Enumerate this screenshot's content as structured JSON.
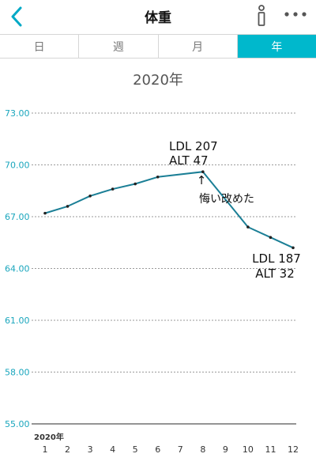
{
  "header": {
    "title": "体重",
    "back_icon": "chevron-left-icon",
    "info_icon": "info-icon",
    "more_icon": "more-horizontal-icon"
  },
  "tabs": [
    {
      "label": "日",
      "active": false
    },
    {
      "label": "週",
      "active": false
    },
    {
      "label": "月",
      "active": false
    },
    {
      "label": "年",
      "active": true
    }
  ],
  "colors": {
    "accent": "#00b8cc",
    "line": "#1b7f96",
    "axis_label": "#1aa6bd",
    "grid": "#9a9a9a"
  },
  "chart_data": {
    "type": "line",
    "title": "2020年",
    "x_start_label": "2020年",
    "x": [
      1,
      2,
      3,
      4,
      5,
      6,
      7,
      8,
      9,
      10,
      11,
      12
    ],
    "series": [
      {
        "x": [
          1,
          2,
          3,
          4,
          5,
          6,
          8,
          10,
          11,
          12
        ],
        "values": [
          67.2,
          67.6,
          68.2,
          68.6,
          68.9,
          69.3,
          69.6,
          66.4,
          65.8,
          65.2
        ]
      }
    ],
    "yticks": [
      "73.00",
      "70.00",
      "67.00",
      "64.00",
      "61.00",
      "58.00",
      "55.00"
    ],
    "ylim": [
      55,
      73
    ],
    "xlim": [
      0.5,
      12.5
    ],
    "grid": true,
    "annotations": [
      {
        "text": "LDL 207",
        "x": 8,
        "y": 70.9,
        "anchor": "end-ish"
      },
      {
        "text": "ALT 47",
        "x": 8,
        "y": 70.1,
        "anchor": "end-ish"
      },
      {
        "text": "↑",
        "x": 8,
        "y": 69.35,
        "anchor": "middle"
      },
      {
        "text": "悔い改めた",
        "x": 8.7,
        "y": 68.9,
        "anchor": "middle"
      },
      {
        "text": "LDL 187",
        "x": 11.3,
        "y": 64.5,
        "anchor": "middle"
      },
      {
        "text": "ALT   32",
        "x": 11.3,
        "y": 63.7,
        "anchor": "middle"
      }
    ]
  }
}
